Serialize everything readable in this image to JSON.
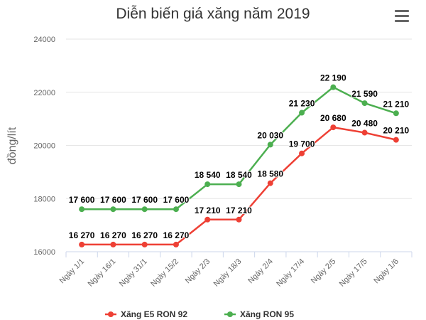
{
  "chart_data": {
    "type": "line",
    "title": "Diễn biến giá xăng năm 2019",
    "ylabel": "đồng/lít",
    "xlabel": "",
    "ylim": [
      16000,
      24000
    ],
    "yticks": [
      16000,
      18000,
      20000,
      22000,
      24000
    ],
    "categories": [
      "Ngày 1/1",
      "Ngày 16/1",
      "Ngày 31/1",
      "Ngày 15/2",
      "Ngày 2/3",
      "Ngày 18/3",
      "Ngày 2/4",
      "Ngày 17/4",
      "Ngày 2/5",
      "Ngày 17/5",
      "Ngày 1/6"
    ],
    "series": [
      {
        "name": "Xăng E5 RON 92",
        "color": "#ee4035",
        "values": [
          16270,
          16270,
          16270,
          16270,
          17210,
          17210,
          18580,
          19700,
          20680,
          20480,
          20210
        ],
        "labels": [
          "16 270",
          "16 270",
          "16 270",
          "16 270",
          "17 210",
          "17 210",
          "18 580",
          "19 700",
          "20 680",
          "20 480",
          "20 210"
        ]
      },
      {
        "name": "Xăng RON 95",
        "color": "#4caf50",
        "values": [
          17600,
          17600,
          17600,
          17600,
          18540,
          18540,
          20030,
          21230,
          22190,
          21590,
          21210
        ],
        "labels": [
          "17 600",
          "17 600",
          "17 600",
          "17 600",
          "18 540",
          "18 540",
          "20 030",
          "21 230",
          "22 190",
          "21 590",
          "21 210"
        ]
      }
    ],
    "legend": "bottom-center",
    "grid": true
  },
  "menu_icon": "hamburger-menu-icon"
}
